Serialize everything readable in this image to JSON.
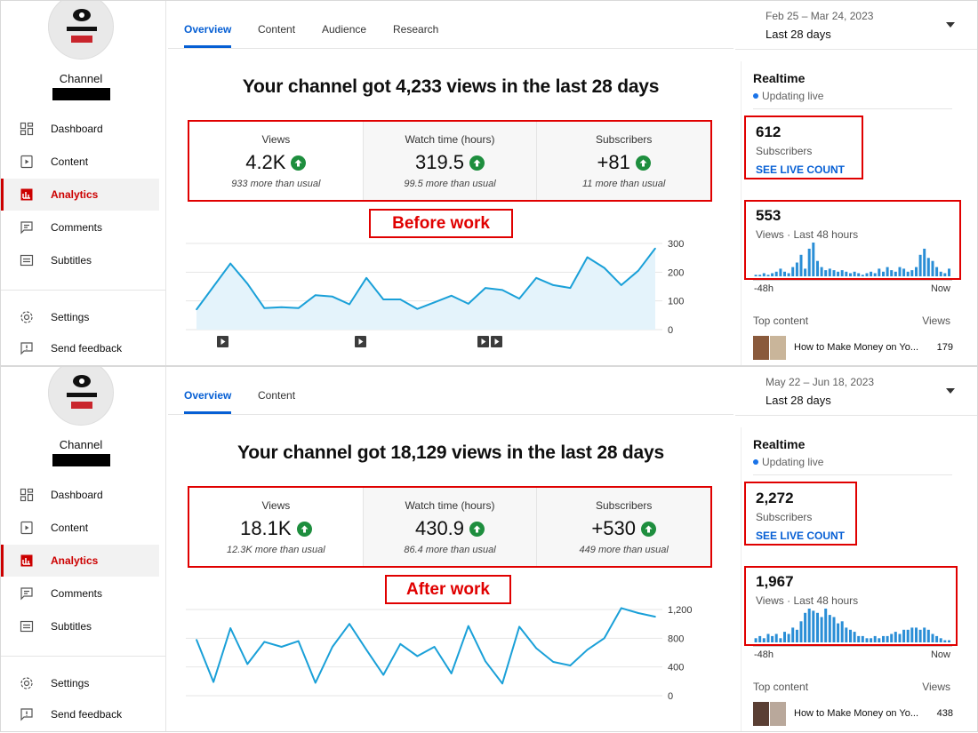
{
  "panels": [
    {
      "sidebar": {
        "channel_name": "Channel",
        "nav": [
          "Dashboard",
          "Content",
          "Analytics",
          "Comments",
          "Subtitles",
          "Settings",
          "Send feedback"
        ],
        "active": "Analytics"
      },
      "tabs": [
        "Overview",
        "Content",
        "Audience",
        "Research"
      ],
      "date_range": "Feb 25 – Mar 24, 2023",
      "date_label": "Last 28 days",
      "headline": "Your channel got 4,233 views in the last 28 days",
      "metrics": [
        {
          "label": "Views",
          "value": "4.2K",
          "note": "933 more than usual"
        },
        {
          "label": "Watch time (hours)",
          "value": "319.5",
          "note": "99.5 more than usual"
        },
        {
          "label": "Subscribers",
          "value": "+81",
          "note": "11 more than usual"
        }
      ],
      "work_label": "Before work",
      "chart_data": {
        "type": "area",
        "x": [
          1,
          2,
          3,
          4,
          5,
          6,
          7,
          8,
          9,
          10,
          11,
          12,
          13,
          14,
          15,
          16,
          17,
          18,
          19,
          20,
          21,
          22,
          23,
          24,
          25,
          26,
          27,
          28
        ],
        "values": [
          70,
          150,
          230,
          160,
          75,
          78,
          75,
          120,
          115,
          88,
          180,
          105,
          105,
          72,
          95,
          118,
          90,
          145,
          138,
          108,
          180,
          155,
          145,
          252,
          215,
          155,
          205,
          283
        ],
        "ylim": [
          0,
          300
        ],
        "yticks": [
          "300",
          "200",
          "100",
          "0"
        ],
        "color": "#1aa0d8",
        "fill": "#e4f3fb"
      },
      "realtime": {
        "title": "Realtime",
        "live": "Updating live",
        "subscribers": "612",
        "subscribers_label": "Subscribers",
        "live_link": "SEE LIVE COUNT",
        "views": "553",
        "views_label": "Views · Last 48 hours",
        "spark": [
          1,
          1,
          2,
          1,
          2,
          3,
          5,
          3,
          2,
          6,
          9,
          14,
          5,
          18,
          22,
          10,
          6,
          4,
          5,
          4,
          3,
          4,
          3,
          2,
          3,
          2,
          1,
          2,
          3,
          2,
          5,
          3,
          6,
          4,
          3,
          6,
          5,
          3,
          4,
          6,
          14,
          18,
          12,
          10,
          6,
          3,
          2,
          5
        ],
        "left_axis": "-48h",
        "right_axis": "Now",
        "top_content_label": "Top content",
        "top_views_label": "Views",
        "top_title": "How to Make Money on Yo...",
        "top_count": "179"
      }
    },
    {
      "sidebar": {
        "channel_name": "Channel",
        "nav": [
          "Dashboard",
          "Content",
          "Analytics",
          "Comments",
          "Subtitles",
          "Settings",
          "Send feedback"
        ],
        "active": "Analytics"
      },
      "tabs": [
        "Overview",
        "Content"
      ],
      "date_range": "May 22 – Jun 18, 2023",
      "date_label": "Last 28 days",
      "headline": "Your channel got 18,129 views in the last 28 days",
      "metrics": [
        {
          "label": "Views",
          "value": "18.1K",
          "note": "12.3K more than usual"
        },
        {
          "label": "Watch time (hours)",
          "value": "430.9",
          "note": "86.4 more than usual"
        },
        {
          "label": "Subscribers",
          "value": "+530",
          "note": "449 more than usual"
        }
      ],
      "work_label": "After work",
      "chart_data": {
        "type": "line",
        "x": [
          1,
          2,
          3,
          4,
          5,
          6,
          7,
          8,
          9,
          10,
          11,
          12,
          13,
          14,
          15,
          16,
          17,
          18,
          19,
          20,
          21,
          22,
          23,
          24,
          25,
          26,
          27,
          28
        ],
        "values": [
          780,
          190,
          940,
          440,
          750,
          680,
          760,
          180,
          680,
          1000,
          640,
          290,
          720,
          550,
          680,
          310,
          970,
          480,
          170,
          960,
          660,
          470,
          420,
          640,
          800,
          1220,
          1150,
          1100
        ],
        "ylim": [
          0,
          1200
        ],
        "yticks": [
          "1,200",
          "800",
          "400",
          "0"
        ],
        "color": "#1aa0d8"
      },
      "realtime": {
        "title": "Realtime",
        "live": "Updating live",
        "subscribers": "2,272",
        "subscribers_label": "Subscribers",
        "live_link": "SEE LIVE COUNT",
        "views": "1,967",
        "views_label": "Views · Last 48 hours",
        "spark": [
          2,
          3,
          2,
          4,
          3,
          4,
          2,
          5,
          4,
          7,
          6,
          10,
          14,
          16,
          15,
          14,
          12,
          16,
          13,
          12,
          9,
          10,
          7,
          6,
          5,
          3,
          3,
          2,
          2,
          3,
          2,
          3,
          3,
          4,
          5,
          4,
          6,
          6,
          7,
          7,
          6,
          7,
          6,
          4,
          3,
          2,
          1,
          1
        ],
        "left_axis": "-48h",
        "right_axis": "Now",
        "top_content_label": "Top content",
        "top_views_label": "Views",
        "top_title": "How to Make Money on Yo...",
        "top_count": "438"
      }
    }
  ]
}
